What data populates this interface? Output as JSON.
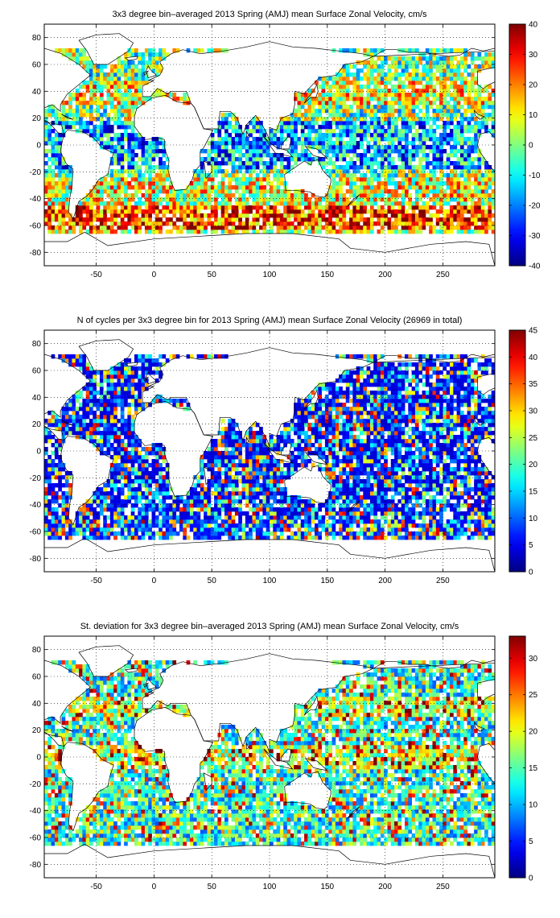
{
  "chart_data": [
    {
      "type": "heatmap",
      "title": "3x3 degree bin–averaged 2013 Spring (AMJ) mean Surface Zonal Velocity, cm/s",
      "xlim": [
        -95,
        295
      ],
      "ylim": [
        -90,
        90
      ],
      "x_ticks": [
        -50,
        0,
        50,
        100,
        150,
        200,
        250
      ],
      "y_ticks": [
        80,
        60,
        40,
        20,
        0,
        -20,
        -40,
        -60,
        -80
      ],
      "colorbar": {
        "min": -40,
        "max": 40,
        "ticks": [
          40,
          30,
          20,
          10,
          0,
          -10,
          -20,
          -30,
          -40
        ]
      },
      "colormap": "jet",
      "grid": true,
      "bin_size_deg": 3
    },
    {
      "type": "heatmap",
      "title": "N of cycles per 3x3 degree bin for 2013 Spring (AMJ) mean Surface Zonal Velocity (26969 in total)",
      "xlim": [
        -95,
        295
      ],
      "ylim": [
        -90,
        90
      ],
      "x_ticks": [
        -50,
        0,
        50,
        100,
        150,
        200,
        250
      ],
      "y_ticks": [
        80,
        60,
        40,
        20,
        0,
        -20,
        -40,
        -60,
        -80
      ],
      "colorbar": {
        "min": 0,
        "max": 45,
        "ticks": [
          45,
          40,
          35,
          30,
          25,
          20,
          15,
          10,
          5,
          0
        ]
      },
      "colormap": "jet",
      "grid": true,
      "bin_size_deg": 3
    },
    {
      "type": "heatmap",
      "title": "St. deviation for 3x3 degree bin–averaged 2013 Spring (AMJ) mean Surface Zonal Velocity, cm/s",
      "xlim": [
        -95,
        295
      ],
      "ylim": [
        -90,
        90
      ],
      "x_ticks": [
        -50,
        0,
        50,
        100,
        150,
        200,
        250
      ],
      "y_ticks": [
        80,
        60,
        40,
        20,
        0,
        -20,
        -40,
        -60,
        -80
      ],
      "colorbar": {
        "min": 0,
        "max": 33,
        "ticks": [
          30,
          25,
          20,
          15,
          10,
          5,
          0
        ]
      },
      "colormap": "jet",
      "grid": true,
      "bin_size_deg": 3
    }
  ]
}
